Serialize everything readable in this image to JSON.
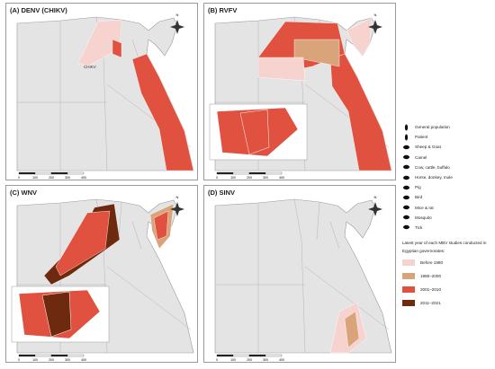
{
  "panels": [
    {
      "title": "(A) DENV (CHIKV)",
      "annotation": "CHIKV"
    },
    {
      "title": "(B) RVFV"
    },
    {
      "title": "(C) WNV"
    },
    {
      "title": "(D) SINV"
    }
  ],
  "compass": "N",
  "scale_labels": [
    "0",
    "100",
    "200",
    "300",
    "400"
  ],
  "legend": {
    "hosts": [
      "General population",
      "Patient",
      "Sheep & Goat",
      "Camel",
      "Cow, cattle, buffalo",
      "Horse, donkey, mule",
      "Pig",
      "Bird",
      "Mice & rat",
      "Mosquito",
      "Tick"
    ],
    "period_title": "Latest year of each MBV studies conducted in Egyptian governorates:",
    "periods": [
      {
        "label": "Before 1980",
        "color": "#f7d3cf"
      },
      {
        "label": "1980–2000",
        "color": "#d9a47a"
      },
      {
        "label": "2001–2010",
        "color": "#e0523f"
      },
      {
        "label": "2011–2021",
        "color": "#6e2a0e"
      }
    ]
  }
}
